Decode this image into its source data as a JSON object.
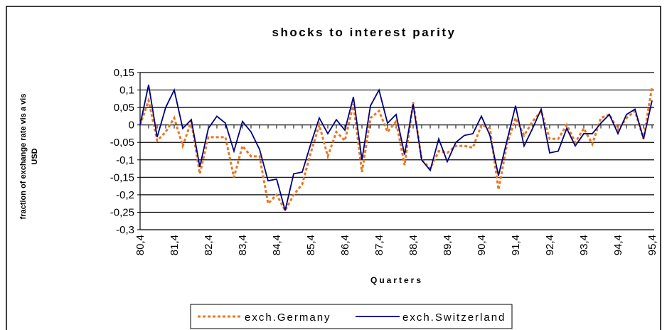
{
  "chart_data": {
    "type": "line",
    "title": "shocks to interest parity",
    "xlabel": "Quarters",
    "ylabel": "fraction of exchange rate vis a vis USD",
    "categories": [
      "80,4",
      null,
      null,
      null,
      "81,4",
      null,
      null,
      null,
      "82,4",
      null,
      null,
      null,
      "83,4",
      null,
      null,
      null,
      "84,4",
      null,
      null,
      null,
      "85,4",
      null,
      null,
      null,
      "86,4",
      null,
      null,
      null,
      "87,4",
      null,
      null,
      null,
      "88,4",
      null,
      null,
      null,
      "89,4",
      null,
      null,
      null,
      "90,4",
      null,
      null,
      null,
      "91,4",
      null,
      null,
      null,
      "92,4",
      null,
      null,
      null,
      "93,4",
      null,
      null,
      null,
      "94,4",
      null,
      null,
      null,
      "95,4"
    ],
    "series": [
      {
        "name": "exch.Germany",
        "color": "#e87722",
        "dashed": true,
        "values": [
          0,
          0.07,
          -0.045,
          -0.02,
          0.02,
          -0.06,
          0.01,
          -0.14,
          -0.035,
          -0.035,
          -0.035,
          -0.15,
          -0.06,
          -0.09,
          -0.09,
          -0.225,
          -0.2,
          -0.245,
          -0.2,
          -0.17,
          -0.08,
          0,
          -0.09,
          -0.02,
          -0.045,
          0.06,
          -0.135,
          0.02,
          0.04,
          -0.02,
          0.01,
          -0.115,
          0.065,
          -0.1,
          -0.125,
          -0.075,
          -0.08,
          -0.06,
          -0.06,
          -0.065,
          0,
          -0.01,
          -0.185,
          -0.055,
          0.02,
          -0.03,
          0.01,
          0.04,
          -0.04,
          -0.04,
          0,
          -0.05,
          -0.01,
          -0.055,
          0.02,
          0.03,
          -0.015,
          0.02,
          0.04,
          -0.04,
          0.11
        ]
      },
      {
        "name": "exch.Switzerland",
        "color": "#000080",
        "dashed": false,
        "values": [
          0,
          0.115,
          -0.035,
          0.05,
          0.1,
          -0.01,
          0.015,
          -0.12,
          -0.01,
          0.025,
          0.005,
          -0.075,
          0.01,
          -0.02,
          -0.07,
          -0.16,
          -0.155,
          -0.245,
          -0.14,
          -0.135,
          -0.055,
          0.02,
          -0.025,
          0.015,
          -0.015,
          0.08,
          -0.1,
          0.055,
          0.1,
          0.005,
          0.03,
          -0.085,
          0.06,
          -0.1,
          -0.13,
          -0.04,
          -0.105,
          -0.05,
          -0.03,
          -0.025,
          0.025,
          -0.03,
          -0.145,
          -0.045,
          0.055,
          -0.06,
          -0.01,
          0.045,
          -0.08,
          -0.075,
          -0.01,
          -0.06,
          -0.025,
          -0.025,
          0.005,
          0.03,
          -0.025,
          0.03,
          0.045,
          -0.04,
          0.07
        ]
      }
    ],
    "ylim": [
      -0.3,
      0.15
    ],
    "yticks": [
      {
        "value": -0.3,
        "label": "-0,3"
      },
      {
        "value": -0.25,
        "label": "-0,25"
      },
      {
        "value": -0.2,
        "label": "-0,2"
      },
      {
        "value": -0.15,
        "label": "-0,15"
      },
      {
        "value": -0.1,
        "label": "-0,1"
      },
      {
        "value": -0.05,
        "label": "-0,05"
      },
      0,
      {
        "value": 0.05,
        "label": "0,05"
      },
      {
        "value": 0.1,
        "label": "0,1"
      },
      {
        "value": 0.15,
        "label": "0,15"
      }
    ],
    "grid": true,
    "legend": "bottom"
  }
}
